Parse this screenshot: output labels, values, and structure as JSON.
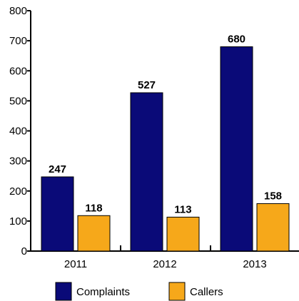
{
  "chart_data": {
    "type": "bar",
    "title": "",
    "xlabel": "",
    "ylabel": "",
    "categories": [
      "2011",
      "2012",
      "2013"
    ],
    "series": [
      {
        "name": "Complaints",
        "values": [
          247,
          527,
          680
        ],
        "color": "#0a0a78"
      },
      {
        "name": "Callers",
        "values": [
          118,
          113,
          158
        ],
        "color": "#f6a81a"
      }
    ],
    "ylim": [
      0,
      800
    ],
    "yticks": [
      0,
      100,
      200,
      300,
      400,
      500,
      600,
      700,
      800
    ],
    "grid": false,
    "legend_position": "bottom"
  }
}
